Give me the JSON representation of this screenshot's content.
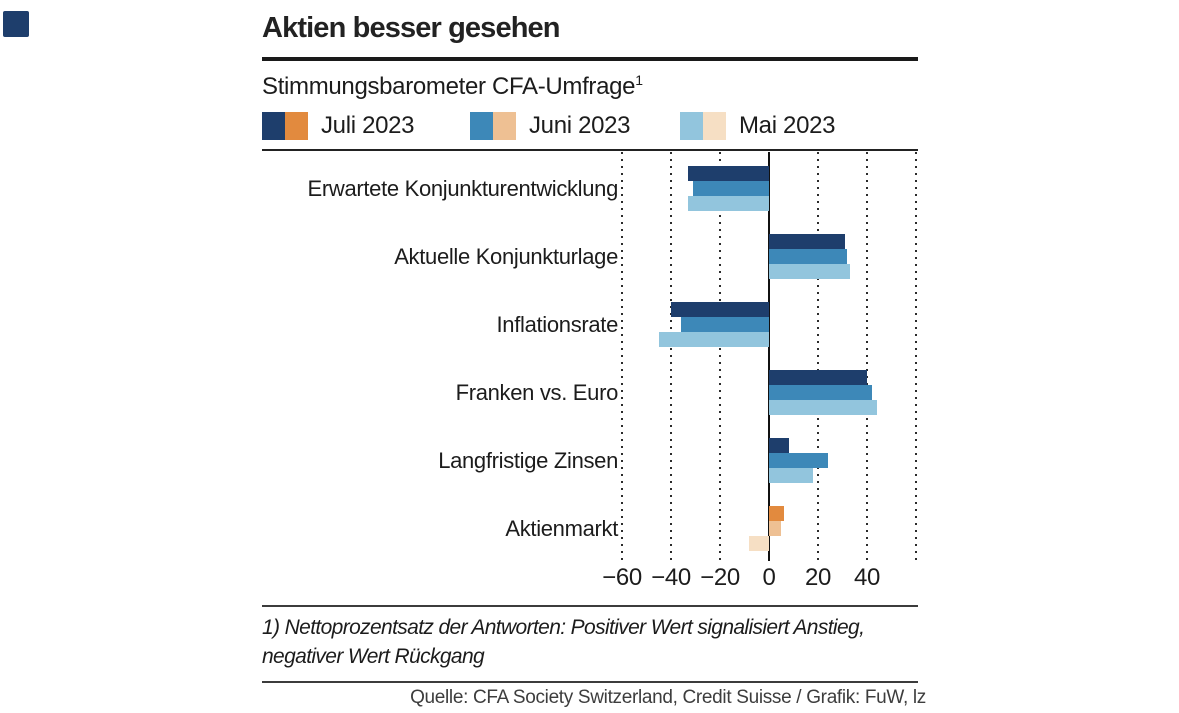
{
  "logo": {
    "color": "#1e3e6c"
  },
  "header": {
    "title": "Aktien besser gesehen",
    "subtitle": "Stimmungsbarometer CFA-Umfrage",
    "subtitle_sup": "1"
  },
  "legend": {
    "items": [
      {
        "label": "Juli 2023",
        "swatches": [
          "#1e3e6c",
          "#e28a3e"
        ]
      },
      {
        "label": "Juni 2023",
        "swatches": [
          "#3d88b8",
          "#eec093"
        ]
      },
      {
        "label": "Mai 2023",
        "swatches": [
          "#92c5dd",
          "#f6dfc4"
        ]
      }
    ]
  },
  "chart_data": {
    "type": "bar",
    "orientation": "horizontal",
    "title": "Aktien besser gesehen",
    "subtitle": "Stimmungsbarometer CFA-Umfrage",
    "categories": [
      "Erwartete Konjunkturentwicklung",
      "Aktuelle Konjunkturlage",
      "Inflationsrate",
      "Franken vs. Euro",
      "Langfristige Zinsen",
      "Aktienmarkt"
    ],
    "series": [
      {
        "name": "Juli 2023",
        "values": [
          -33,
          31,
          -40,
          40,
          8,
          6
        ]
      },
      {
        "name": "Juni 2023",
        "values": [
          -31,
          32,
          -36,
          42,
          24,
          5
        ]
      },
      {
        "name": "Mai 2023",
        "values": [
          -33,
          33,
          -45,
          44,
          18,
          -8
        ]
      }
    ],
    "series_colors_blue": [
      "#1e3e6c",
      "#3d88b8",
      "#92c5dd"
    ],
    "series_colors_orange": [
      "#e28a3e",
      "#eec093",
      "#f6dfc4"
    ],
    "orange_category_index": 5,
    "x_tick_labels": [
      "−60",
      "−40",
      "−20",
      "0",
      "20",
      "40"
    ],
    "x_tick_values": [
      -60,
      -40,
      -20,
      0,
      20,
      40
    ],
    "grid_tick_values": [
      -60,
      -40,
      -20,
      20,
      40,
      60
    ],
    "xlim": [
      -75,
      61
    ],
    "grid": "dotted-vertical",
    "zero_line": true,
    "legend_position": "top",
    "unit": "Nettoprozentsatz der Antworten"
  },
  "footnote": {
    "line1": "1) Nettoprozentsatz der Antworten: Positiver Wert signalisiert Anstieg,",
    "line2": "negativer Wert Rückgang"
  },
  "source": "Quelle: CFA Society Switzerland, Credit Suisse / Grafik: FuW, lz"
}
